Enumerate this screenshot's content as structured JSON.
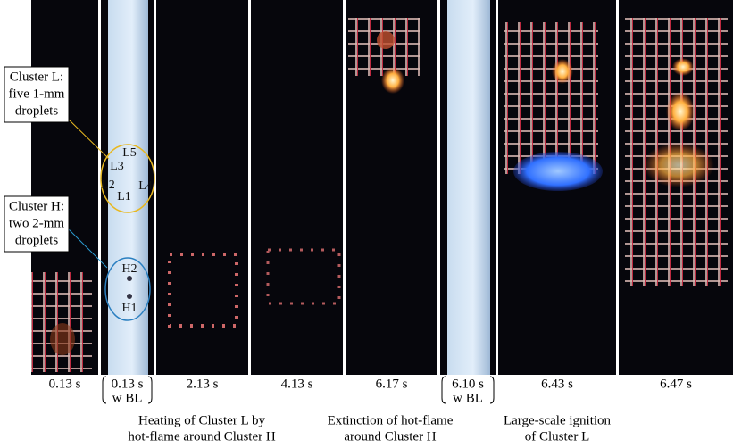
{
  "panels": [
    {
      "time": "0.13 s"
    },
    {
      "time": "0.13 s",
      "note": "w BL"
    },
    {
      "time": "2.13 s"
    },
    {
      "time": "4.13 s"
    },
    {
      "time": "6.17 s"
    },
    {
      "time": "6.10 s",
      "note": "w BL"
    },
    {
      "time": "6.43 s"
    },
    {
      "time": "6.47 s"
    }
  ],
  "callouts": [
    {
      "lines": [
        "Cluster L:",
        "five 1-mm",
        "droplets"
      ]
    },
    {
      "lines": [
        "Cluster H:",
        "two 2-mm",
        "droplets"
      ]
    }
  ],
  "droplets": [
    "L5",
    "L3",
    "L2",
    "L1",
    "L4",
    "H2",
    "H1"
  ],
  "captions": [
    {
      "lines": [
        "Heating of Cluster L by",
        "hot-flame around Cluster H"
      ]
    },
    {
      "lines": [
        "Extinction of hot-flame",
        "around Cluster H"
      ]
    },
    {
      "lines": [
        "Large-scale ignition",
        "of Cluster L"
      ]
    }
  ]
}
